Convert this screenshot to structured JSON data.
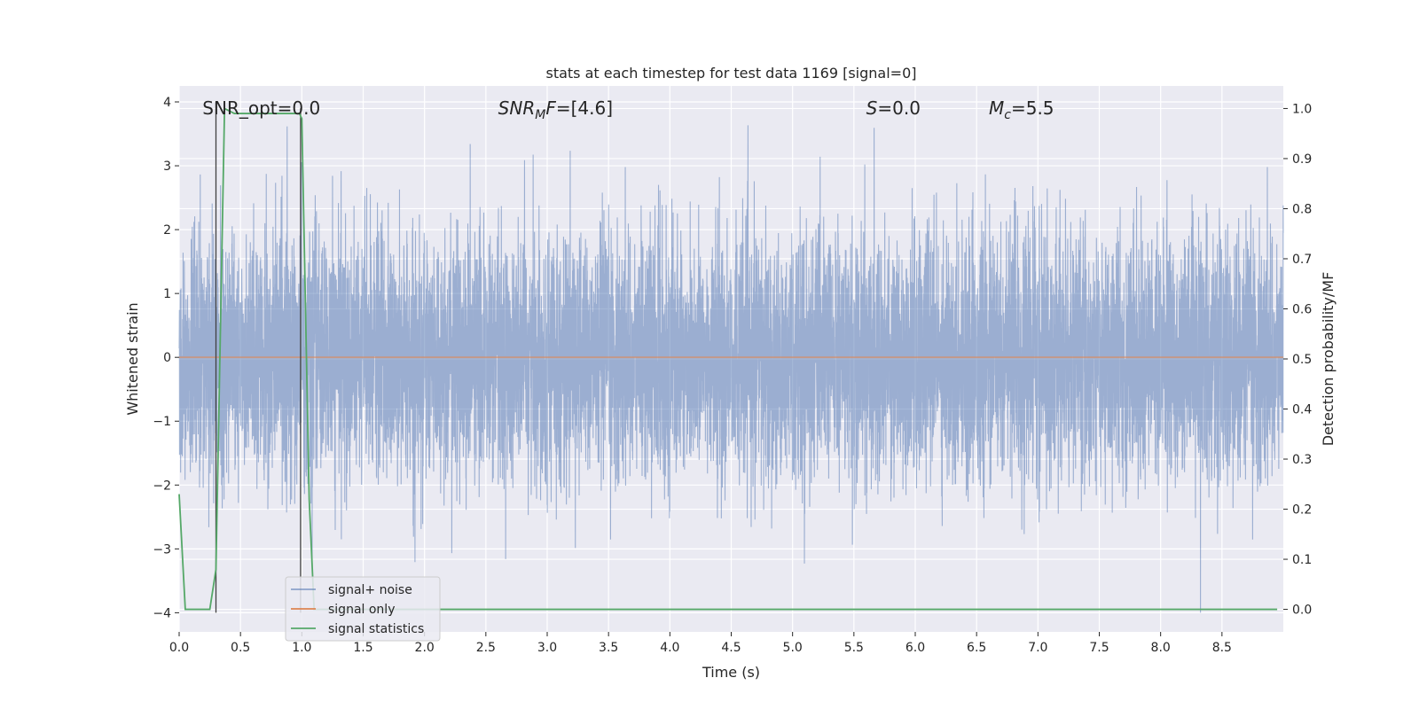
{
  "chart_data": {
    "type": "line",
    "title": "stats at each timestep for test data 1169 [signal=0]",
    "xlabel": "Time (s)",
    "ylabel_left": "Whitened strain",
    "ylabel_right": "Detection probability/MF",
    "xlim": [
      0.0,
      9.0
    ],
    "ylim_left": [
      -4.3,
      4.25
    ],
    "ylim_right": [
      -0.045,
      1.045
    ],
    "x_ticks": [
      0.0,
      0.5,
      1.0,
      1.5,
      2.0,
      2.5,
      3.0,
      3.5,
      4.0,
      4.5,
      5.0,
      5.5,
      6.0,
      6.5,
      7.0,
      7.5,
      8.0,
      8.5
    ],
    "x_tick_labels": [
      "0.0",
      "0.5",
      "1.0",
      "1.5",
      "2.0",
      "2.5",
      "3.0",
      "3.5",
      "4.0",
      "4.5",
      "5.0",
      "5.5",
      "6.0",
      "6.5",
      "7.0",
      "7.5",
      "8.0",
      "8.5"
    ],
    "y_left_ticks": [
      -4,
      -3,
      -2,
      -1,
      0,
      1,
      2,
      3,
      4
    ],
    "y_left_tick_labels": [
      "−4",
      "−3",
      "−2",
      "−1",
      "0",
      "1",
      "2",
      "3",
      "4"
    ],
    "y_right_ticks": [
      0.0,
      0.1,
      0.2,
      0.3,
      0.4,
      0.5,
      0.6,
      0.7,
      0.8,
      0.9,
      1.0
    ],
    "y_right_tick_labels": [
      "0.0",
      "0.1",
      "0.2",
      "0.3",
      "0.4",
      "0.5",
      "0.6",
      "0.7",
      "0.8",
      "0.9",
      "1.0"
    ],
    "annotations": [
      {
        "id": "snr-opt",
        "text": "SNR_opt=0.0",
        "x": 0.19,
        "y": 3.9
      },
      {
        "id": "snr-mf",
        "text": "SNR_MF=[4.6]",
        "x": 2.6,
        "y": 3.9
      },
      {
        "id": "s-value",
        "text": "S=0.0",
        "x": 5.6,
        "y": 3.9
      },
      {
        "id": "mc-value",
        "text": "M_c=5.5",
        "x": 6.6,
        "y": 3.9
      }
    ],
    "legend": {
      "position": "lower-left",
      "entries": [
        {
          "label": "signal+ noise",
          "color": "#4c72b0"
        },
        {
          "label": "signal only",
          "color": "#dd8452"
        },
        {
          "label": "signal statistics",
          "color": "#55a868"
        }
      ]
    },
    "series": [
      {
        "name": "signal+ noise",
        "axis": "left",
        "color": "#4c72b0",
        "alpha": 0.5,
        "description": "whitened strain noise trace, approx. mean 0, std 0.95, range [-4, 3.85]",
        "sample_rate": 2048,
        "envelope": [
          2.2,
          -1.5
        ]
      },
      {
        "name": "signal only",
        "axis": "left",
        "color": "#dd8452",
        "alpha": 0.6,
        "x": [
          0.0,
          9.0
        ],
        "y": [
          0.0,
          0.0
        ]
      },
      {
        "name": "signal statistics",
        "axis": "right",
        "color": "#55a868",
        "x": [
          0.0,
          0.05,
          0.25,
          0.3,
          0.37,
          0.45,
          0.55,
          0.65,
          0.75,
          0.85,
          0.93,
          0.98,
          1.0,
          1.06,
          1.1,
          1.5,
          2.0,
          3.0,
          4.0,
          5.0,
          6.0,
          7.0,
          8.0,
          8.95
        ],
        "y": [
          0.23,
          0.0,
          0.0,
          0.08,
          1.0,
          0.99,
          0.99,
          0.99,
          0.99,
          0.99,
          0.99,
          0.99,
          0.98,
          0.22,
          0.0,
          0.0,
          0.0,
          0.0,
          0.0,
          0.0,
          0.0,
          0.0,
          0.0,
          0.0
        ]
      },
      {
        "name": "detection markers",
        "axis": "left",
        "color": "#404040",
        "x": [
          0.3,
          0.99
        ],
        "y_from": [
          -4.0,
          -4.0
        ],
        "y_to": [
          4.0,
          3.9
        ]
      }
    ]
  }
}
